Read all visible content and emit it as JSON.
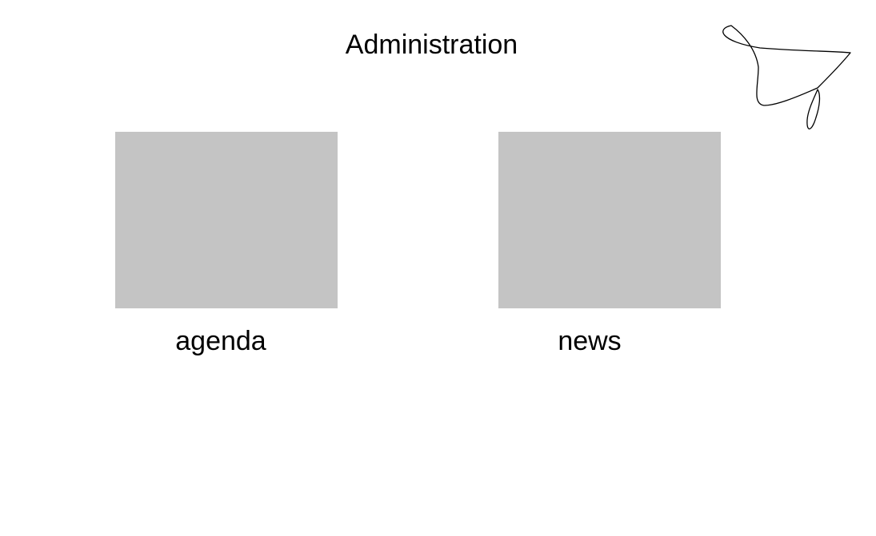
{
  "header": {
    "title": "Administration"
  },
  "decoration": {
    "icon": "scribble-icon",
    "stroke_color": "#000000"
  },
  "tiles": [
    {
      "id": "agenda",
      "label": "agenda",
      "placeholder_color": "#c4c4c4"
    },
    {
      "id": "news",
      "label": "news",
      "placeholder_color": "#c4c4c4"
    }
  ]
}
